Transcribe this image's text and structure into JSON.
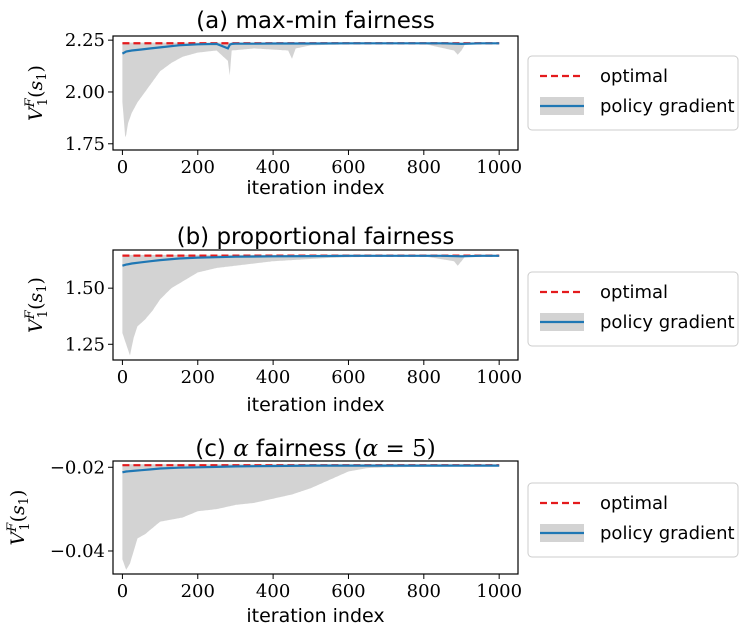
{
  "chart_data": [
    {
      "type": "line",
      "title_prefix": "(a) max-min fairness",
      "xlabel": "iteration index",
      "ylabel": "V_1^F(s_1)",
      "xlim": [
        -25,
        1050
      ],
      "ylim": [
        1.72,
        2.27
      ],
      "xticks": [
        0,
        200,
        400,
        600,
        800,
        1000
      ],
      "xtick_labels": [
        "0",
        "200",
        "400",
        "600",
        "800",
        "1000"
      ],
      "yticks": [
        1.75,
        2.0,
        2.25
      ],
      "ytick_labels": [
        "1.75",
        "2.00",
        "2.25"
      ],
      "optimal": 2.235,
      "mean": {
        "x": [
          0,
          10,
          25,
          50,
          75,
          100,
          150,
          200,
          250,
          280,
          285,
          290,
          300,
          350,
          400,
          450,
          500,
          600,
          700,
          800,
          850,
          900,
          950,
          1000
        ],
        "y": [
          2.185,
          2.195,
          2.2,
          2.205,
          2.21,
          2.215,
          2.225,
          2.23,
          2.232,
          2.21,
          2.228,
          2.232,
          2.233,
          2.233,
          2.234,
          2.234,
          2.234,
          2.235,
          2.235,
          2.235,
          2.235,
          2.232,
          2.235,
          2.235
        ]
      },
      "band_upper": {
        "x": [
          0,
          1000
        ],
        "y": [
          2.238,
          2.238
        ]
      },
      "band_lower": {
        "x": [
          0,
          8,
          15,
          25,
          40,
          60,
          80,
          100,
          130,
          160,
          200,
          250,
          280,
          285,
          290,
          350,
          440,
          450,
          460,
          500,
          600,
          700,
          800,
          880,
          890,
          900,
          910,
          950,
          1000
        ],
        "y": [
          1.95,
          1.77,
          1.85,
          1.9,
          1.95,
          2.0,
          2.05,
          2.1,
          2.14,
          2.17,
          2.19,
          2.2,
          2.15,
          2.08,
          2.2,
          2.21,
          2.2,
          2.16,
          2.21,
          2.225,
          2.23,
          2.232,
          2.232,
          2.2,
          2.18,
          2.2,
          2.232,
          2.234,
          2.234
        ]
      },
      "legend": [
        "optimal",
        "policy gradient"
      ],
      "legend_position": "right"
    },
    {
      "type": "line",
      "title_prefix": "(b) proportional fairness",
      "xlabel": "iteration index",
      "ylabel": "V_1^F(s_1)",
      "xlim": [
        -25,
        1050
      ],
      "ylim": [
        1.18,
        1.67
      ],
      "xticks": [
        0,
        200,
        400,
        600,
        800,
        1000
      ],
      "xtick_labels": [
        "0",
        "200",
        "400",
        "600",
        "800",
        "1000"
      ],
      "yticks": [
        1.25,
        1.5
      ],
      "ytick_labels": [
        "1.25",
        "1.50"
      ],
      "optimal": 1.645,
      "mean": {
        "x": [
          0,
          10,
          25,
          50,
          75,
          100,
          150,
          200,
          250,
          300,
          400,
          500,
          600,
          700,
          800,
          850,
          900,
          950,
          1000
        ],
        "y": [
          1.6,
          1.605,
          1.61,
          1.615,
          1.62,
          1.625,
          1.632,
          1.636,
          1.638,
          1.64,
          1.642,
          1.643,
          1.644,
          1.644,
          1.644,
          1.644,
          1.642,
          1.644,
          1.644
        ]
      },
      "band_upper": {
        "x": [
          0,
          1000
        ],
        "y": [
          1.648,
          1.648
        ]
      },
      "band_lower": {
        "x": [
          0,
          10,
          20,
          30,
          40,
          60,
          80,
          100,
          130,
          160,
          200,
          250,
          300,
          350,
          400,
          450,
          500,
          550,
          600,
          700,
          800,
          880,
          890,
          900,
          910,
          950,
          1000
        ],
        "y": [
          1.3,
          1.25,
          1.2,
          1.28,
          1.33,
          1.36,
          1.4,
          1.45,
          1.5,
          1.53,
          1.57,
          1.59,
          1.6,
          1.61,
          1.62,
          1.625,
          1.63,
          1.635,
          1.638,
          1.64,
          1.642,
          1.62,
          1.6,
          1.62,
          1.642,
          1.644,
          1.644
        ]
      },
      "legend": [
        "optimal",
        "policy gradient"
      ],
      "legend_position": "right"
    },
    {
      "type": "line",
      "title_prefix": "(c) ",
      "title_math": "α",
      "title_middle": " fairness (",
      "title_math2": "α",
      "title_suffix": " = 5)",
      "xlabel": "iteration index",
      "ylabel": "V_1^F(s_1)",
      "xlim": [
        -25,
        1050
      ],
      "ylim": [
        -0.0455,
        -0.0185
      ],
      "xticks": [
        0,
        200,
        400,
        600,
        800,
        1000
      ],
      "xtick_labels": [
        "0",
        "200",
        "400",
        "600",
        "800",
        "1000"
      ],
      "yticks": [
        -0.02,
        -0.04
      ],
      "ytick_labels": [
        "−0.02",
        "−0.04"
      ],
      "optimal": -0.0195,
      "mean": {
        "x": [
          0,
          10,
          25,
          50,
          75,
          100,
          150,
          200,
          250,
          300,
          400,
          500,
          600,
          700,
          800,
          900,
          1000
        ],
        "y": [
          -0.0212,
          -0.021,
          -0.0209,
          -0.0207,
          -0.0205,
          -0.0203,
          -0.0201,
          -0.02,
          -0.0199,
          -0.0198,
          -0.0197,
          -0.0196,
          -0.0196,
          -0.0196,
          -0.0196,
          -0.0196,
          -0.0196
        ]
      },
      "band_upper": {
        "x": [
          0,
          1000
        ],
        "y": [
          -0.0193,
          -0.0193
        ]
      },
      "band_lower": {
        "x": [
          0,
          10,
          20,
          40,
          60,
          80,
          100,
          130,
          160,
          200,
          250,
          300,
          350,
          400,
          450,
          500,
          550,
          600,
          650,
          700,
          800,
          900,
          1000
        ],
        "y": [
          -0.042,
          -0.0445,
          -0.043,
          -0.037,
          -0.036,
          -0.0345,
          -0.033,
          -0.0325,
          -0.032,
          -0.0305,
          -0.03,
          -0.029,
          -0.0285,
          -0.0275,
          -0.0265,
          -0.025,
          -0.023,
          -0.021,
          -0.0202,
          -0.02,
          -0.0199,
          -0.0198,
          -0.0198
        ]
      },
      "legend": [
        "optimal",
        "policy gradient"
      ],
      "legend_position": "right"
    }
  ],
  "colors": {
    "optimal": "#e41a1c",
    "mean": "#1f77b4",
    "band": "#d3d3d3"
  }
}
